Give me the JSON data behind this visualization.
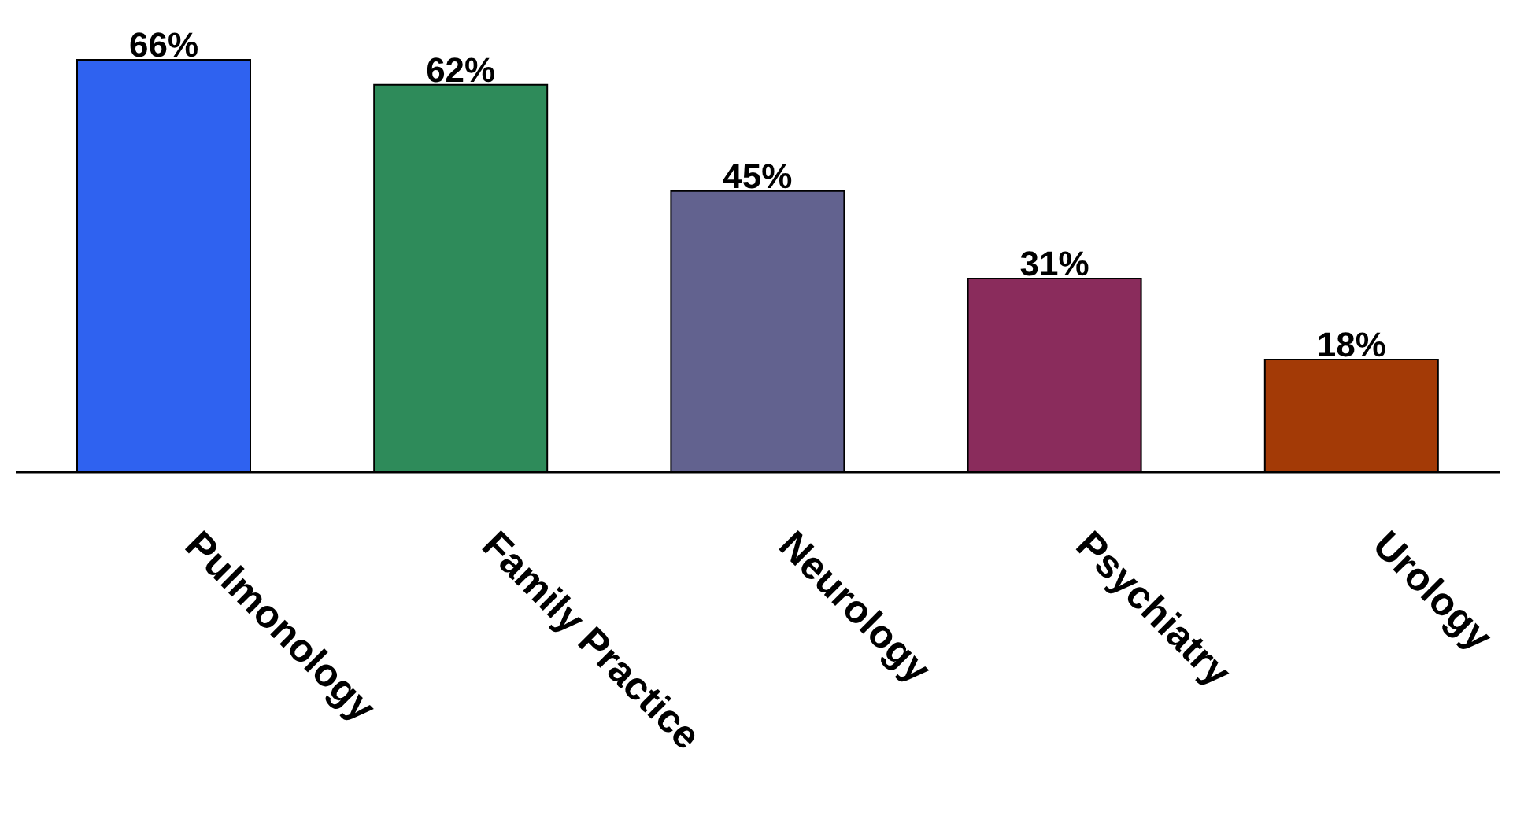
{
  "chart_data": {
    "type": "bar",
    "categories": [
      "Pulmonology",
      "Family Practice",
      "Neurology",
      "Psychiatry",
      "Urology"
    ],
    "values": [
      66,
      62,
      45,
      31,
      18
    ],
    "colors": [
      "#2f62f0",
      "#2e8b5a",
      "#62628f",
      "#8a2c5c",
      "#a33a06"
    ],
    "data_labels": true,
    "value_labels": [
      "66%",
      "62%",
      "45%",
      "31%",
      "18%"
    ],
    "grid": false,
    "legend": false
  }
}
